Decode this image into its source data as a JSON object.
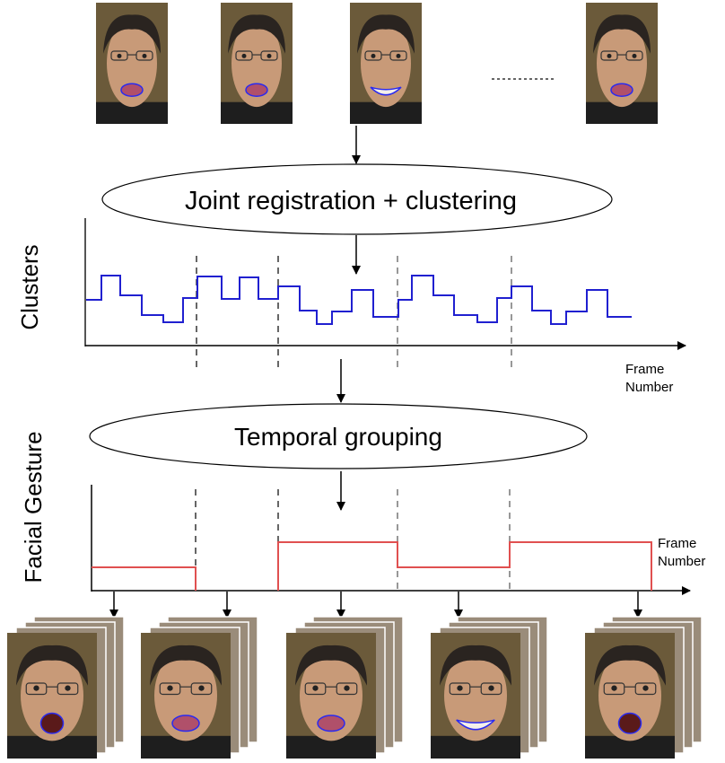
{
  "steps": {
    "registration": "Joint registration + clustering",
    "grouping": "Temporal grouping"
  },
  "plots": {
    "clusters": {
      "ylabel": "Clusters",
      "xlabel_line1": "Frame",
      "xlabel_line2": "Number",
      "line_color": "#2020d0"
    },
    "gesture": {
      "ylabel": "Facial Gesture",
      "xlabel_line1": "Frame",
      "xlabel_line2": "Number",
      "line_color": "#e05050"
    }
  },
  "input_frames": {
    "expressions": [
      "pout",
      "pout",
      "smile",
      "ellipsis",
      "pout"
    ]
  },
  "output_groups": {
    "expressions": [
      "open",
      "pout",
      "pout",
      "smile",
      "open"
    ]
  },
  "colors": {
    "lip_contour": "#2a2af0",
    "background": "#6b5a3a",
    "skin": "#c89a78"
  }
}
